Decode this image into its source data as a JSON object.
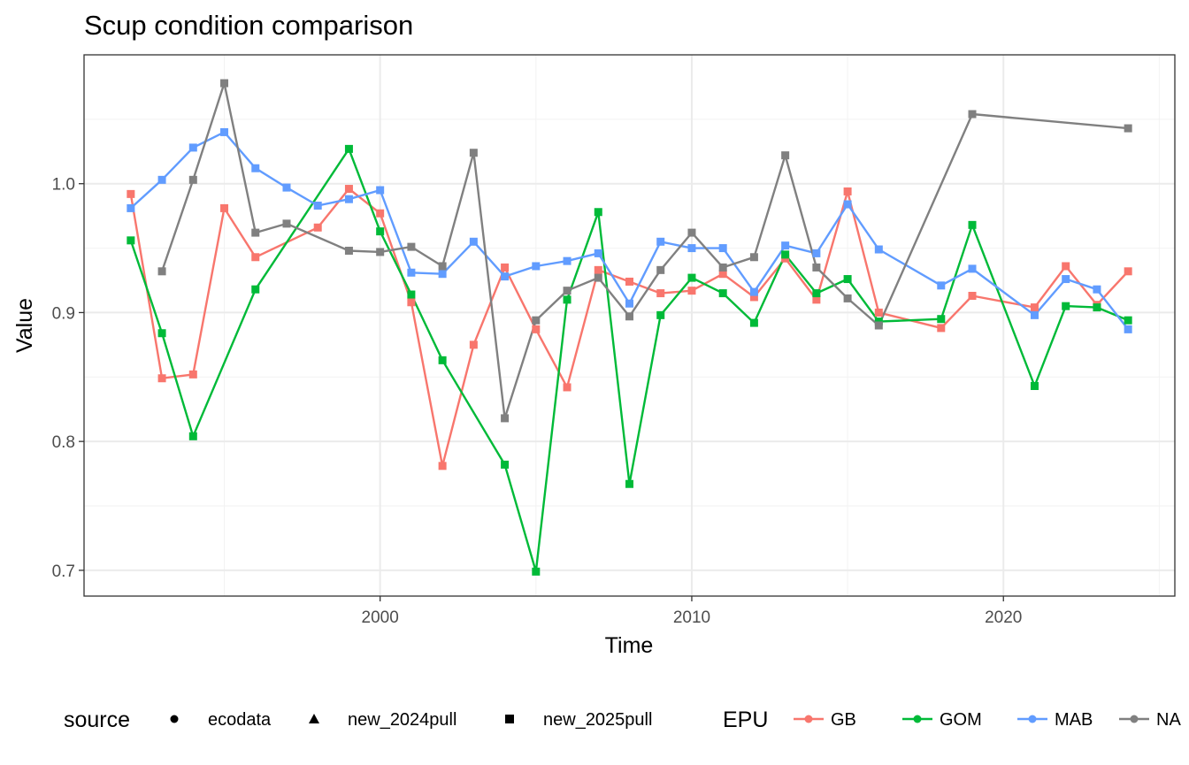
{
  "chart_data": {
    "type": "line",
    "title": "Scup condition comparison",
    "xlabel": "Time",
    "ylabel": "Value",
    "xlim": [
      1990.5,
      2025.5
    ],
    "ylim": [
      0.68,
      1.1
    ],
    "x_ticks": [
      2000,
      2010,
      2020
    ],
    "y_ticks": [
      0.7,
      0.8,
      0.9,
      1.0
    ],
    "y_tick_labels": [
      "0.7",
      "0.8",
      "0.9",
      "1.0"
    ],
    "grid": true,
    "legend_position": "bottom",
    "legends": {
      "source": {
        "title": "source",
        "items": [
          {
            "label": "ecodata",
            "shape": "circle"
          },
          {
            "label": "new_2024pull",
            "shape": "triangle"
          },
          {
            "label": "new_2025pull",
            "shape": "square"
          }
        ]
      },
      "epu": {
        "title": "EPU",
        "items": [
          {
            "label": "GB",
            "color": "#F8766D"
          },
          {
            "label": "GOM",
            "color": "#00BA38"
          },
          {
            "label": "MAB",
            "color": "#619CFF"
          },
          {
            "label": "NA",
            "color": "#808080"
          }
        ]
      }
    },
    "series": [
      {
        "name": "GB",
        "color": "#F8766D",
        "x": [
          1992,
          1993,
          1994,
          1995,
          1996,
          1998,
          1999,
          2000,
          2001,
          2002,
          2003,
          2004,
          2005,
          2006,
          2007,
          2008,
          2009,
          2010,
          2011,
          2012,
          2013,
          2014,
          2015,
          2016,
          2018,
          2019,
          2021,
          2022,
          2023,
          2024
        ],
        "y": [
          0.992,
          0.849,
          0.852,
          0.981,
          0.943,
          0.966,
          0.996,
          0.977,
          0.908,
          0.781,
          0.875,
          0.935,
          0.887,
          0.842,
          0.933,
          0.924,
          0.915,
          0.917,
          0.93,
          0.912,
          0.942,
          0.91,
          0.994,
          0.9,
          0.888,
          0.913,
          0.904,
          0.936,
          0.906,
          0.932
        ]
      },
      {
        "name": "GOM",
        "color": "#00BA38",
        "x": [
          1992,
          1993,
          1994,
          1996,
          1999,
          2000,
          2001,
          2002,
          2004,
          2005,
          2006,
          2007,
          2008,
          2009,
          2010,
          2011,
          2012,
          2013,
          2014,
          2015,
          2016,
          2018,
          2019,
          2021,
          2022,
          2023,
          2024
        ],
        "y": [
          0.956,
          0.884,
          0.804,
          0.918,
          1.027,
          0.963,
          0.914,
          0.863,
          0.782,
          0.699,
          0.91,
          0.978,
          0.767,
          0.898,
          0.927,
          0.915,
          0.892,
          0.945,
          0.915,
          0.926,
          0.893,
          0.895,
          0.968,
          0.843,
          0.905,
          0.904,
          0.894
        ]
      },
      {
        "name": "MAB",
        "color": "#619CFF",
        "x": [
          1992,
          1993,
          1994,
          1995,
          1996,
          1997,
          1998,
          1999,
          2000,
          2001,
          2002,
          2003,
          2004,
          2005,
          2006,
          2007,
          2008,
          2009,
          2010,
          2011,
          2012,
          2013,
          2014,
          2015,
          2016,
          2018,
          2019,
          2021,
          2022,
          2023,
          2024
        ],
        "y": [
          0.981,
          1.003,
          1.028,
          1.04,
          1.012,
          0.997,
          0.983,
          0.988,
          0.995,
          0.931,
          0.93,
          0.955,
          0.928,
          0.936,
          0.94,
          0.946,
          0.907,
          0.955,
          0.95,
          0.95,
          0.916,
          0.952,
          0.946,
          0.984,
          0.949,
          0.921,
          0.934,
          0.898,
          0.926,
          0.918,
          0.887
        ]
      },
      {
        "name": "NA",
        "color": "#808080",
        "x": [
          1993,
          1994,
          1995,
          1996,
          1997,
          1999,
          2000,
          2001,
          2002,
          2003,
          2004,
          2005,
          2006,
          2007,
          2008,
          2009,
          2010,
          2011,
          2012,
          2013,
          2014,
          2015,
          2016,
          2019,
          2024
        ],
        "y": [
          0.932,
          1.003,
          1.078,
          0.962,
          0.969,
          0.948,
          0.947,
          0.951,
          0.936,
          1.024,
          0.818,
          0.894,
          0.917,
          0.927,
          0.897,
          0.933,
          0.962,
          0.935,
          0.943,
          1.022,
          0.935,
          0.911,
          0.89,
          1.054,
          1.043
        ]
      }
    ]
  }
}
